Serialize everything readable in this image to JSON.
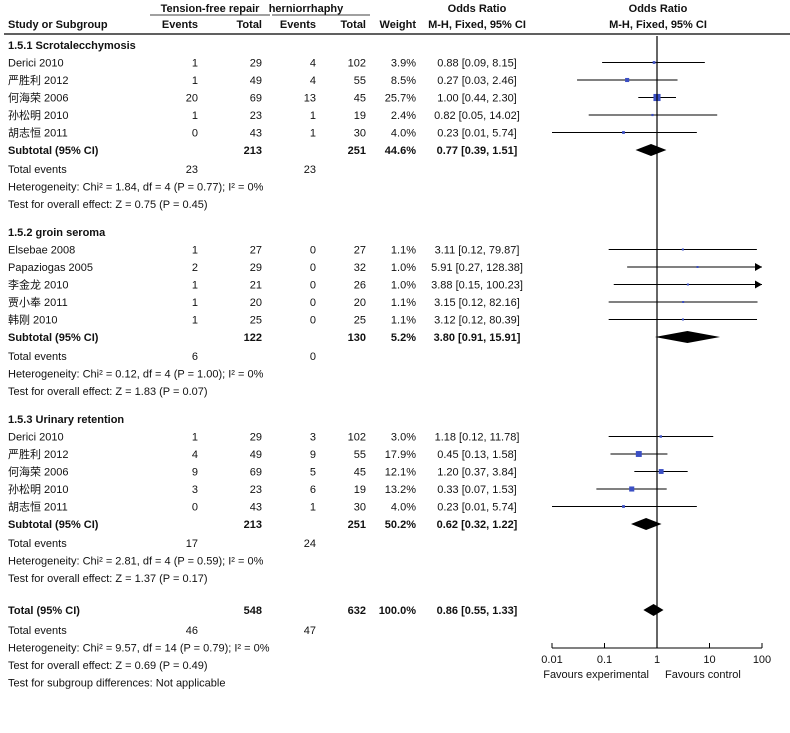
{
  "chart_data": {
    "type": "forest",
    "header": {
      "group1": "Tension-free repair",
      "group2": "herniorrhaphy",
      "study": "Study or Subgroup",
      "events": "Events",
      "total": "Total",
      "weight": "Weight",
      "or_text_title": "Odds Ratio",
      "or_text_sub": "M-H, Fixed, 95% CI",
      "or_plot_title": "Odds Ratio",
      "or_plot_sub": "M-H, Fixed, 95% CI"
    },
    "subgroups": [
      {
        "title": "1.5.1 Scrotalecchymosis",
        "studies": [
          {
            "name": "Derici  2010",
            "e1": "1",
            "n1": "29",
            "e2": "4",
            "n2": "102",
            "weight": "3.9%",
            "ci": "0.88 [0.09, 8.15]",
            "or": 0.88,
            "lo": 0.09,
            "hi": 8.15,
            "w": 3.9
          },
          {
            "name": "严胜利 2012",
            "e1": "1",
            "n1": "49",
            "e2": "4",
            "n2": "55",
            "weight": "8.5%",
            "ci": "0.27 [0.03, 2.46]",
            "or": 0.27,
            "lo": 0.03,
            "hi": 2.46,
            "w": 8.5
          },
          {
            "name": "何海荣 2006",
            "e1": "20",
            "n1": "69",
            "e2": "13",
            "n2": "45",
            "weight": "25.7%",
            "ci": "1.00 [0.44, 2.30]",
            "or": 1.0,
            "lo": 0.44,
            "hi": 2.3,
            "w": 25.7
          },
          {
            "name": "孙松明 2010",
            "e1": "1",
            "n1": "23",
            "e2": "1",
            "n2": "19",
            "weight": "2.4%",
            "ci": "0.82 [0.05, 14.02]",
            "or": 0.82,
            "lo": 0.05,
            "hi": 14.02,
            "w": 2.4
          },
          {
            "name": "胡志恒 2011",
            "e1": "0",
            "n1": "43",
            "e2": "1",
            "n2": "30",
            "weight": "4.0%",
            "ci": "0.23 [0.01, 5.74]",
            "or": 0.23,
            "lo": 0.01,
            "hi": 5.74,
            "w": 4.0
          }
        ],
        "subtotal": {
          "label": "Subtotal (95% CI)",
          "n1": "213",
          "n2": "251",
          "weight": "44.6%",
          "ci": "0.77 [0.39, 1.51]",
          "or": 0.77,
          "lo": 0.39,
          "hi": 1.51
        },
        "total_events": {
          "label": "Total events",
          "e1": "23",
          "e2": "23"
        },
        "heterogeneity": "Heterogeneity: Chi² = 1.84, df = 4 (P = 0.77); I² = 0%",
        "overall": "Test for overall effect: Z = 0.75 (P = 0.45)"
      },
      {
        "title": "1.5.2 groin seroma",
        "studies": [
          {
            "name": "Elsebae  2008",
            "e1": "1",
            "n1": "27",
            "e2": "0",
            "n2": "27",
            "weight": "1.1%",
            "ci": "3.11 [0.12, 79.87]",
            "or": 3.11,
            "lo": 0.12,
            "hi": 79.87,
            "w": 1.1
          },
          {
            "name": "Papaziogas 2005",
            "e1": "2",
            "n1": "29",
            "e2": "0",
            "n2": "32",
            "weight": "1.0%",
            "ci": "5.91 [0.27, 128.38]",
            "or": 5.91,
            "lo": 0.27,
            "hi": 128.38,
            "w": 1.0
          },
          {
            "name": "李金龙 2010",
            "e1": "1",
            "n1": "21",
            "e2": "0",
            "n2": "26",
            "weight": "1.0%",
            "ci": "3.88 [0.15, 100.23]",
            "or": 3.88,
            "lo": 0.15,
            "hi": 100.23,
            "w": 1.0
          },
          {
            "name": "贾小奉 2011",
            "e1": "1",
            "n1": "20",
            "e2": "0",
            "n2": "20",
            "weight": "1.1%",
            "ci": "3.15 [0.12, 82.16]",
            "or": 3.15,
            "lo": 0.12,
            "hi": 82.16,
            "w": 1.1
          },
          {
            "name": "韩刚 2010",
            "e1": "1",
            "n1": "25",
            "e2": "0",
            "n2": "25",
            "weight": "1.1%",
            "ci": "3.12 [0.12, 80.39]",
            "or": 3.12,
            "lo": 0.12,
            "hi": 80.39,
            "w": 1.1
          }
        ],
        "subtotal": {
          "label": "Subtotal (95% CI)",
          "n1": "122",
          "n2": "130",
          "weight": "5.2%",
          "ci": "3.80 [0.91, 15.91]",
          "or": 3.8,
          "lo": 0.91,
          "hi": 15.91
        },
        "total_events": {
          "label": "Total events",
          "e1": "6",
          "e2": "0"
        },
        "heterogeneity": "Heterogeneity: Chi² = 0.12, df = 4 (P = 1.00); I² = 0%",
        "overall": "Test for overall effect: Z = 1.83 (P = 0.07)"
      },
      {
        "title": "1.5.3 Urinary retention",
        "studies": [
          {
            "name": "Derici  2010",
            "e1": "1",
            "n1": "29",
            "e2": "3",
            "n2": "102",
            "weight": "3.0%",
            "ci": "1.18 [0.12, 11.78]",
            "or": 1.18,
            "lo": 0.12,
            "hi": 11.78,
            "w": 3.0
          },
          {
            "name": "严胜利 2012",
            "e1": "4",
            "n1": "49",
            "e2": "9",
            "n2": "55",
            "weight": "17.9%",
            "ci": "0.45 [0.13, 1.58]",
            "or": 0.45,
            "lo": 0.13,
            "hi": 1.58,
            "w": 17.9
          },
          {
            "name": "何海荣 2006",
            "e1": "9",
            "n1": "69",
            "e2": "5",
            "n2": "45",
            "weight": "12.1%",
            "ci": "1.20 [0.37, 3.84]",
            "or": 1.2,
            "lo": 0.37,
            "hi": 3.84,
            "w": 12.1
          },
          {
            "name": "孙松明 2010",
            "e1": "3",
            "n1": "23",
            "e2": "6",
            "n2": "19",
            "weight": "13.2%",
            "ci": "0.33 [0.07, 1.53]",
            "or": 0.33,
            "lo": 0.07,
            "hi": 1.53,
            "w": 13.2
          },
          {
            "name": "胡志恒 2011",
            "e1": "0",
            "n1": "43",
            "e2": "1",
            "n2": "30",
            "weight": "4.0%",
            "ci": "0.23 [0.01, 5.74]",
            "or": 0.23,
            "lo": 0.01,
            "hi": 5.74,
            "w": 4.0
          }
        ],
        "subtotal": {
          "label": "Subtotal (95% CI)",
          "n1": "213",
          "n2": "251",
          "weight": "50.2%",
          "ci": "0.62 [0.32, 1.22]",
          "or": 0.62,
          "lo": 0.32,
          "hi": 1.22
        },
        "total_events": {
          "label": "Total events",
          "e1": "17",
          "e2": "24"
        },
        "heterogeneity": "Heterogeneity: Chi² = 2.81, df = 4 (P = 0.59); I² = 0%",
        "overall": "Test for overall effect: Z = 1.37 (P = 0.17)"
      }
    ],
    "total": {
      "label": "Total (95% CI)",
      "n1": "548",
      "n2": "632",
      "weight": "100.0%",
      "ci": "0.86 [0.55, 1.33]",
      "or": 0.86,
      "lo": 0.55,
      "hi": 1.33,
      "events_label": "Total events",
      "e1": "46",
      "e2": "47",
      "heterogeneity": "Heterogeneity: Chi² = 9.57, df = 14 (P = 0.79); I² = 0%",
      "overall": "Test for overall effect: Z = 0.69 (P = 0.49)",
      "subgroup_diff": "Test for subgroup differences: Not applicable"
    },
    "axis": {
      "scale": "log",
      "range": [
        0.01,
        100
      ],
      "ticks": [
        0.01,
        0.1,
        1,
        10,
        100
      ],
      "tick_labels": [
        "0.01",
        "0.1",
        "1",
        "10",
        "100"
      ],
      "left_label": "Favours experimental",
      "right_label": "Favours control"
    },
    "colors": {
      "square": "#3b4fc4",
      "diamond": "#000000",
      "line": "#000000"
    }
  }
}
